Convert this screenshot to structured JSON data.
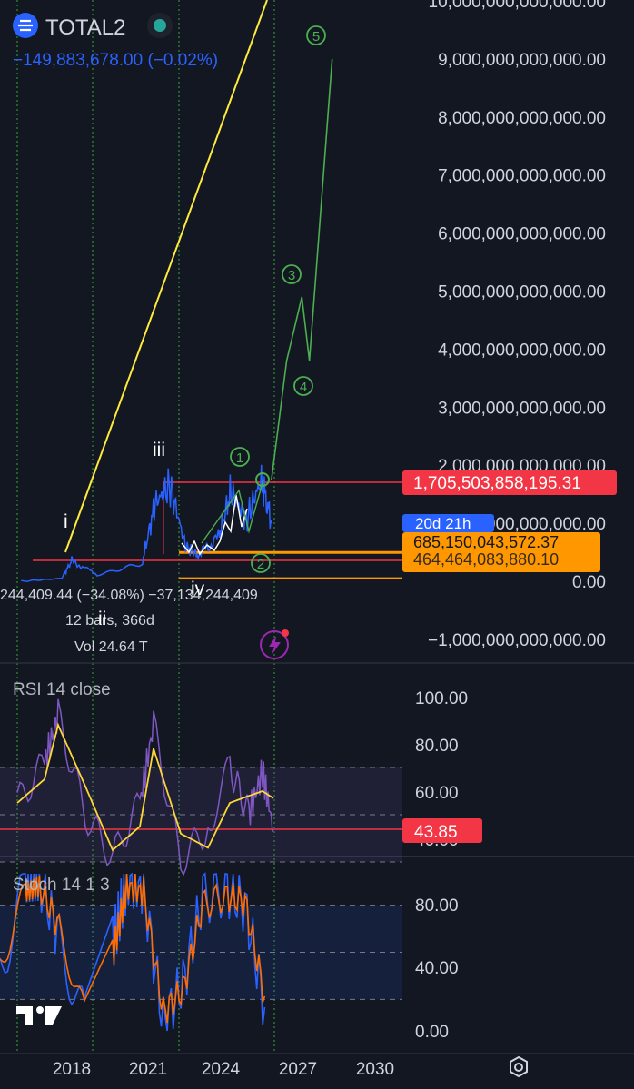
{
  "symbol": {
    "name": "TOTAL2",
    "change": "−149,883,678.00 (−0.02%)"
  },
  "price_axis": {
    "labels": [
      "10,000,000,000,000.00",
      "9,000,000,000,000.00",
      "8,000,000,000,000.00",
      "7,000,000,000,000.00",
      "6,000,000,000,000.00",
      "5,000,000,000,000.00",
      "4,000,000,000,000.00",
      "3,000,000,000,000.00",
      "2,000,000,000,000.00",
      "1,000,000,000,000.00",
      "0.00",
      "−1,000,000,000,000.00"
    ],
    "values": [
      10,
      9,
      8,
      7,
      6,
      5,
      4,
      3,
      2,
      1,
      0,
      -1
    ]
  },
  "badges": {
    "resistance": "1,705,503,858,195.31",
    "countdown": "20d 21h",
    "support": "685,150,043,572.37",
    "support2": "464,464,083,880.10"
  },
  "measure": {
    "line1": "244,409.44 (−34.08%) −37,134,244,409",
    "line2": "12 bars, 366d",
    "line3": "Vol 24.64 T"
  },
  "wave_labels": {
    "i": "i",
    "ii": "ii",
    "iii": "iii",
    "iv": "iv",
    "w1": "1",
    "w2": "2",
    "w3": "3",
    "w4": "4",
    "w5": "5"
  },
  "rsi": {
    "title": "RSI 14 close",
    "labels": [
      "100.00",
      "80.00",
      "60.00",
      "40.00"
    ],
    "values": [
      100,
      80,
      60,
      40
    ],
    "current": "43.85"
  },
  "stoch": {
    "title": "Stoch 14 1 3",
    "labels": [
      "80.00",
      "40.00",
      "0.00"
    ],
    "values": [
      80,
      40,
      0
    ]
  },
  "time_axis": [
    "2018",
    "2021",
    "2024",
    "2027",
    "2030"
  ],
  "colors": {
    "background": "#131722",
    "price_line": "#2962ff",
    "projection": "#4caf50",
    "trendline": "#ffeb3b",
    "resistance": "#f23645",
    "support": "#ff9800",
    "rsi": "#7e57c2",
    "rsi_ma": "#fdd835",
    "stoch_k": "#2962ff",
    "stoch_d": "#ff6d00"
  },
  "chart_data": [
    {
      "type": "line",
      "title": "TOTAL2",
      "x": [
        2016.0,
        2017.6,
        2018.0,
        2019.0,
        2020.8,
        2021.3,
        2021.9,
        2022.5,
        2023.0,
        2023.8,
        2024.3,
        2024.9,
        2025.5,
        2025.9
      ],
      "series": [
        {
          "values": [
            0.0,
            0.05,
            0.35,
            0.12,
            0.35,
            1.35,
            1.65,
            0.6,
            0.45,
            0.75,
            1.55,
            1.05,
            1.75,
            1.0
          ]
        }
      ],
      "projection": {
        "x": [
          2025.9,
          2026.5,
          2027.1,
          2027.4,
          2028.3
        ],
        "values": [
          1.75,
          3.8,
          4.9,
          3.8,
          9.0
        ],
        "points": [
          "1",
          "2",
          "3",
          "4",
          "5"
        ]
      },
      "levels": {
        "resistance": 1.7055,
        "support": 0.685,
        "support2": 0.464
      },
      "ylim": [
        -1.3,
        10.0
      ]
    },
    {
      "type": "line",
      "title": "RSI 14 close",
      "x": [
        2016.5,
        2017.5,
        2018.0,
        2019.0,
        2020.0,
        2021.0,
        2021.5,
        2022.5,
        2023.5,
        2024.3,
        2025.0,
        2025.5,
        2025.9
      ],
      "series": [
        {
          "values": [
            55,
            72,
            92,
            50,
            32,
            55,
            88,
            30,
            45,
            70,
            50,
            68,
            43.85
          ]
        },
        {
          "values": [
            55,
            65,
            88,
            62,
            35,
            45,
            78,
            42,
            36,
            55,
            58,
            60,
            57
          ]
        }
      ],
      "levels": [
        70,
        30
      ],
      "ylim": [
        20,
        100
      ]
    },
    {
      "type": "line",
      "title": "Stoch 14 1 3",
      "x": [
        2016.5,
        2017.4,
        2017.9,
        2018.6,
        2019.5,
        2020.5,
        2021.0,
        2021.6,
        2022.3,
        2023.0,
        2023.7,
        2024.5,
        2025.2,
        2025.9
      ],
      "series": [
        {
          "values": [
            40,
            92,
            95,
            60,
            5,
            55,
            95,
            90,
            5,
            30,
            85,
            90,
            80,
            15
          ]
        },
        {
          "values": [
            42,
            88,
            92,
            66,
            10,
            48,
            92,
            88,
            12,
            26,
            80,
            86,
            82,
            22
          ]
        }
      ],
      "levels": [
        80,
        50,
        20
      ],
      "ylim": [
        0,
        100
      ]
    }
  ]
}
